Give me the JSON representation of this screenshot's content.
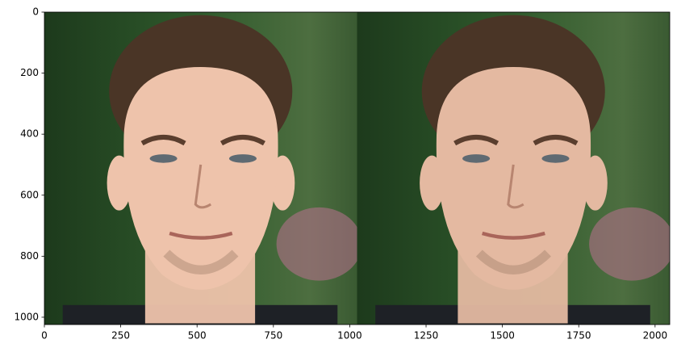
{
  "chart_data": {
    "type": "image",
    "xlim": [
      0,
      2048
    ],
    "ylim": [
      1024,
      0
    ],
    "xticks": [
      0,
      250,
      500,
      750,
      1000,
      1250,
      1500,
      1750,
      2000
    ],
    "yticks": [
      0,
      200,
      400,
      600,
      800,
      1000
    ]
  }
}
